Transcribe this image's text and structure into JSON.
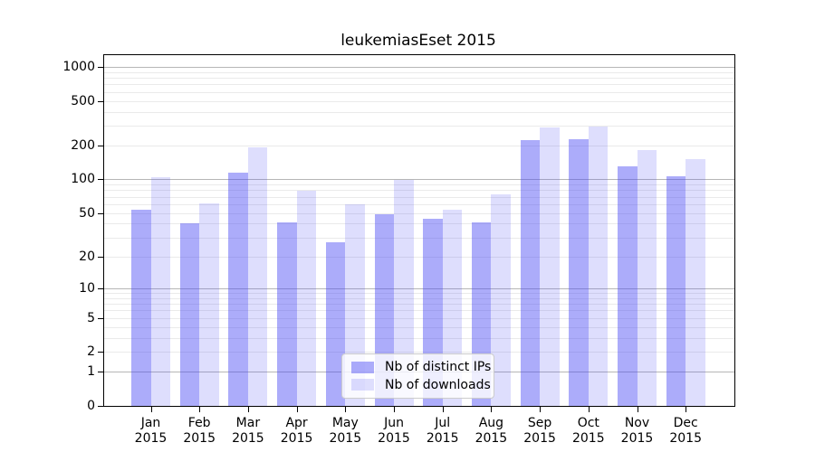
{
  "chart_data": {
    "type": "bar",
    "title": "leukemiasEset 2015",
    "categories": [
      "Jan",
      "Feb",
      "Mar",
      "Apr",
      "May",
      "Jun",
      "Jul",
      "Aug",
      "Sep",
      "Oct",
      "Nov",
      "Dec"
    ],
    "year_label": "2015",
    "series": [
      {
        "name": "Nb of distinct IPs",
        "color": "rgba(70,70,245,0.45)",
        "values": [
          53,
          40,
          115,
          41,
          27,
          49,
          44,
          41,
          222,
          226,
          131,
          106
        ]
      },
      {
        "name": "Nb of downloads",
        "color": "rgba(70,70,245,0.18)",
        "values": [
          105,
          61,
          193,
          79,
          60,
          99,
          53,
          74,
          290,
          293,
          182,
          151
        ]
      }
    ],
    "xlabel": "",
    "ylabel": "",
    "yscale": "log10(value+1)",
    "ytick_values": [
      0,
      1,
      2,
      5,
      10,
      20,
      50,
      100,
      200,
      500,
      1000
    ],
    "ytick_major_values": [
      1,
      10,
      100,
      1000
    ],
    "ylim": [
      0,
      1270
    ],
    "grid": true,
    "legend_position": "lower center",
    "colors": {
      "major_grid": "#b6b6b6",
      "minor_grid": "#eaeaea",
      "spine": "#000000",
      "background": "#ffffff"
    }
  }
}
